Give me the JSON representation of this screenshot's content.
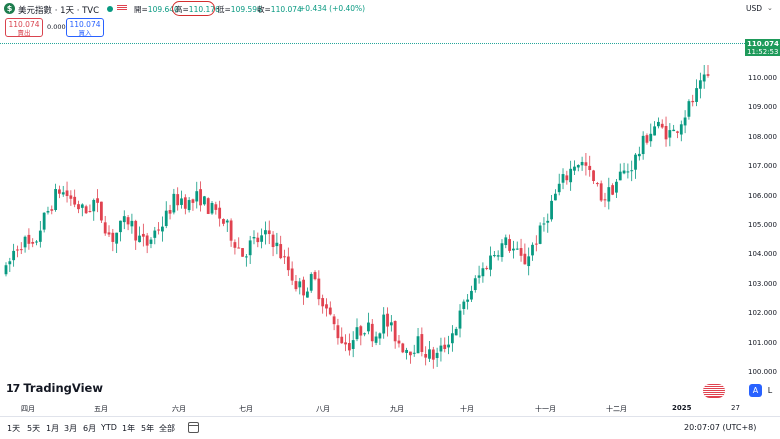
{
  "header": {
    "logo_glyph": "$",
    "symbol": "美元指數 · 1天 · TVC",
    "ohlc": {
      "open_label": "開=",
      "open": "109.640",
      "high_label": "高=",
      "high": "110.176",
      "low_label": "低=",
      "low": "109.596",
      "close_label": "收=",
      "close": "110.074",
      "change": "+0.434 (+0.40%)"
    },
    "currency": "USD",
    "colors": {
      "up": "#089981",
      "down": "#e0424f",
      "highlight": "#d32f2f"
    }
  },
  "trade": {
    "sell_price": "110.074",
    "sell_label": "賣出",
    "spread": "0.000",
    "buy_price": "110.074",
    "buy_label": "買入"
  },
  "price_axis": {
    "ticks": [
      "110.000",
      "109.000",
      "108.000",
      "107.000",
      "106.000",
      "105.000",
      "104.000",
      "103.000",
      "102.000",
      "101.000",
      "100.000"
    ],
    "last_price": "110.074",
    "countdown": "11:52:53"
  },
  "time_axis": {
    "ticks": [
      "四月",
      "五月",
      "六月",
      "七月",
      "八月",
      "九月",
      "十月",
      "十一月",
      "十二月",
      "2025",
      "27"
    ]
  },
  "branding": {
    "name": "TradingView",
    "mark": "17"
  },
  "scale_buttons": {
    "auto": "A",
    "log": "L"
  },
  "toolbar": {
    "ranges": [
      "1天",
      "5天",
      "1月",
      "3月",
      "6月",
      "YTD",
      "1年",
      "5年",
      "全部"
    ],
    "clock": "20:07:07 (UTC+8)"
  },
  "chart_data": {
    "type": "candlestick",
    "symbol": "美元指數",
    "interval": "1天",
    "x": [
      "四月",
      "五月",
      "六月",
      "七月",
      "八月",
      "九月",
      "十月",
      "十一月",
      "十二月",
      "2025"
    ],
    "ylim": [
      99.8,
      110.6
    ],
    "last": 110.074,
    "path": [
      103.4,
      104.2,
      104.5,
      104.1,
      105.0,
      105.6,
      106.2,
      106.0,
      105.7,
      105.4,
      105.8,
      105.2,
      104.5,
      104.9,
      105.2,
      104.6,
      104.3,
      104.8,
      105.1,
      105.8,
      105.9,
      105.7,
      106.0,
      105.6,
      105.4,
      105.0,
      104.5,
      104.0,
      104.4,
      104.5,
      104.7,
      104.2,
      103.6,
      103.0,
      102.8,
      103.2,
      102.5,
      101.8,
      101.2,
      100.9,
      101.3,
      101.6,
      101.2,
      101.8,
      101.4,
      100.9,
      100.8,
      101.0,
      100.6,
      100.5,
      100.9,
      101.4,
      102.1,
      102.8,
      103.3,
      103.8,
      104.2,
      104.4,
      104.1,
      103.7,
      104.3,
      104.8,
      105.6,
      106.3,
      106.7,
      107.2,
      107.0,
      106.4,
      105.9,
      106.2,
      106.7,
      106.9,
      107.4,
      108.0,
      108.4,
      108.2,
      108.1,
      108.6,
      109.1,
      109.6,
      110.07
    ]
  }
}
